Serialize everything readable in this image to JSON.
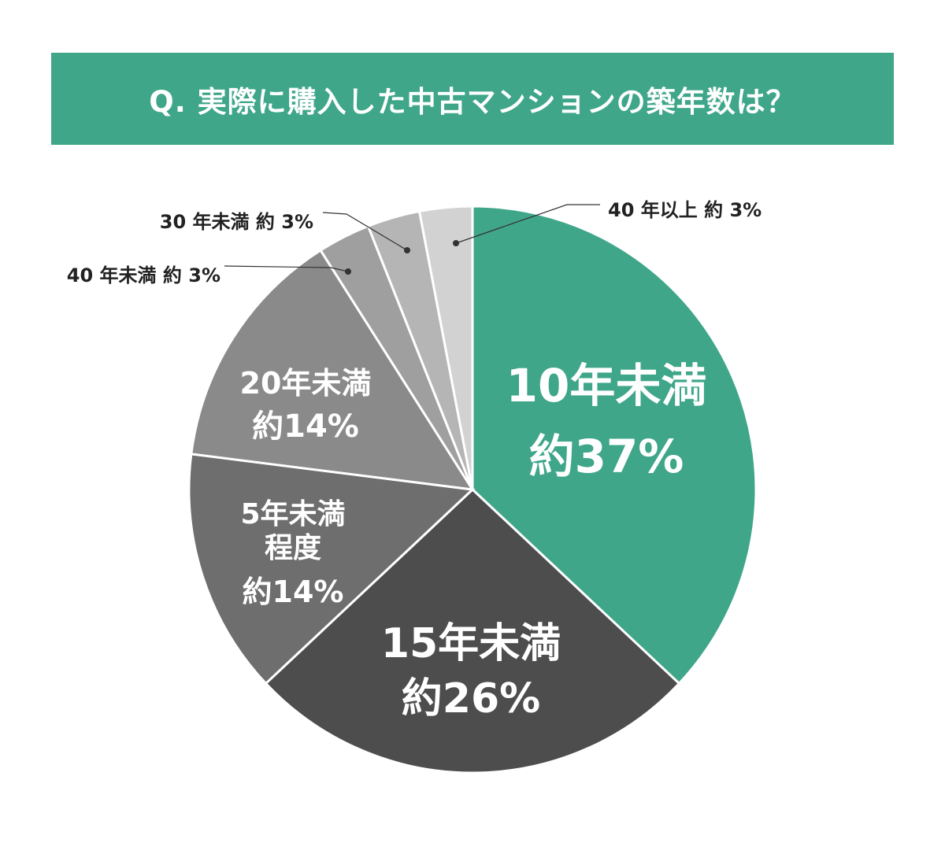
{
  "title": "Q. 実際に購入した中古マンションの築年数は？",
  "colors": {
    "title_bg": "#3fa68a",
    "slice_border": "#ffffff",
    "callout_line": "#333333"
  },
  "chart_data": {
    "type": "pie",
    "title": "Q. 実際に購入した中古マンションの築年数は？",
    "slices": [
      {
        "name": "10年未満",
        "value": 37,
        "label_lines": [
          "10年未満",
          "約37%"
        ],
        "color": "#3fa68a",
        "label_style": "inside"
      },
      {
        "name": "15年未満",
        "value": 26,
        "label_lines": [
          "15年未満",
          "約26%"
        ],
        "color": "#4d4d4d",
        "label_style": "inside"
      },
      {
        "name": "5年未満程度",
        "value": 14,
        "label_lines": [
          "5年未満",
          "程度",
          "約14%"
        ],
        "color": "#6e6e6e",
        "label_style": "inside"
      },
      {
        "name": "20年未満",
        "value": 14,
        "label_lines": [
          "20年未満",
          "約14%"
        ],
        "color": "#8a8a8a",
        "label_style": "inside"
      },
      {
        "name": "40年未満",
        "value": 3,
        "callout_text": "40 年未満 約 3%",
        "color": "#9f9f9f",
        "label_style": "callout",
        "callout_side": "left"
      },
      {
        "name": "30年未満",
        "value": 3,
        "callout_text": "30 年未満 約 3%",
        "color": "#b5b5b5",
        "label_style": "callout",
        "callout_side": "left"
      },
      {
        "name": "40年以上",
        "value": 3,
        "callout_text": "40 年以上 約 3%",
        "color": "#d2d2d2",
        "label_style": "callout",
        "callout_side": "right"
      }
    ]
  }
}
